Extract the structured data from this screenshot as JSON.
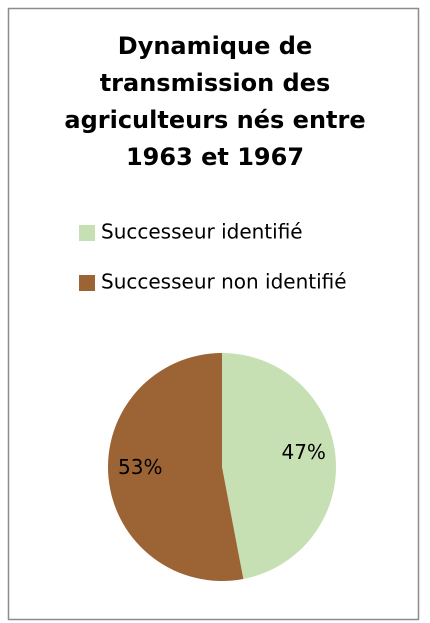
{
  "chart_data": {
    "type": "pie",
    "title": "Dynamique de transmission des agriculteurs nés entre 1963 et 1967",
    "categories": [
      "Successeur identifié",
      "Successeur non identifié"
    ],
    "values": [
      47,
      53
    ],
    "value_labels": [
      "47%",
      "53%"
    ],
    "colors": [
      "#c6e0b4",
      "#9c6334"
    ],
    "legend": "top"
  }
}
